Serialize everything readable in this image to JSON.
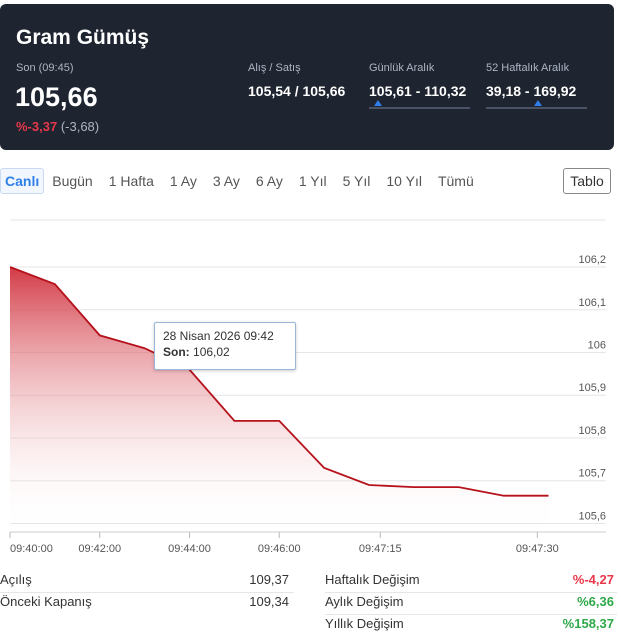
{
  "header": {
    "title": "Gram Gümüş",
    "son_label": "Son (09:45)",
    "price": "105,66",
    "change_pct": "%-3,37",
    "change_abs": "(-3,68)",
    "alis_satis_label": "Alış / Satış",
    "alis_satis_value": "105,54 / 105,66",
    "gunluk_label": "Günlük Aralık",
    "gunluk_value": "105,61 - 110,32",
    "gunluk_position": 0.01,
    "haftalik52_label": "52 Haftalık Aralık",
    "haftalik52_value": "39,18 - 169,92",
    "haftalik52_position": 0.51
  },
  "tabs": [
    "Canlı",
    "Bugün",
    "1 Hafta",
    "1 Ay",
    "3 Ay",
    "6 Ay",
    "1 Yıl",
    "5 Yıl",
    "10 Yıl",
    "Tümü"
  ],
  "active_tab": "Canlı",
  "tablo_label": "Tablo",
  "tooltip": {
    "date": "28 Nisan 2026 09:42",
    "son_label": "Son:",
    "son_value": "106,02"
  },
  "chart_data": {
    "type": "area",
    "title": "",
    "x": [
      0,
      1,
      2,
      3,
      4,
      5,
      6,
      7,
      8,
      9,
      10,
      11,
      12
    ],
    "y": [
      106.2,
      106.16,
      106.04,
      106.01,
      105.96,
      105.84,
      105.84,
      105.73,
      105.69,
      105.685,
      105.685,
      105.665,
      105.665
    ],
    "x_ticks": [
      {
        "x": 0,
        "label": "09:40:00"
      },
      {
        "x": 2,
        "label": "09:42:00"
      },
      {
        "x": 4,
        "label": "09:44:00"
      },
      {
        "x": 6,
        "label": "09:46:00"
      },
      {
        "x": 8.25,
        "label": "09:47:15"
      },
      {
        "x": 11.75,
        "label": "09:47:30"
      }
    ],
    "y_ticks": [
      {
        "v": 106.2,
        "label": "106,2"
      },
      {
        "v": 106.1,
        "label": "106,1"
      },
      {
        "v": 106.0,
        "label": "106"
      },
      {
        "v": 105.9,
        "label": "105,9"
      },
      {
        "v": 105.8,
        "label": "105,8"
      },
      {
        "v": 105.7,
        "label": "105,7"
      },
      {
        "v": 105.6,
        "label": "105,6"
      }
    ],
    "ylim": [
      105.58,
      106.31
    ],
    "xlim": [
      0,
      12.3
    ],
    "grid": true,
    "color": "#b5121b"
  },
  "stats": {
    "acilis_label": "Açılış",
    "acilis_value": "109,37",
    "onceki_label": "Önceki Kapanış",
    "onceki_value": "109,34",
    "haftalik_label": "Haftalık Değişim",
    "haftalik_value": "%-4,27",
    "aylik_label": "Aylık Değişim",
    "aylik_value": "%6,36",
    "yillik_label": "Yıllık Değişim",
    "yillik_value": "%158,37"
  }
}
